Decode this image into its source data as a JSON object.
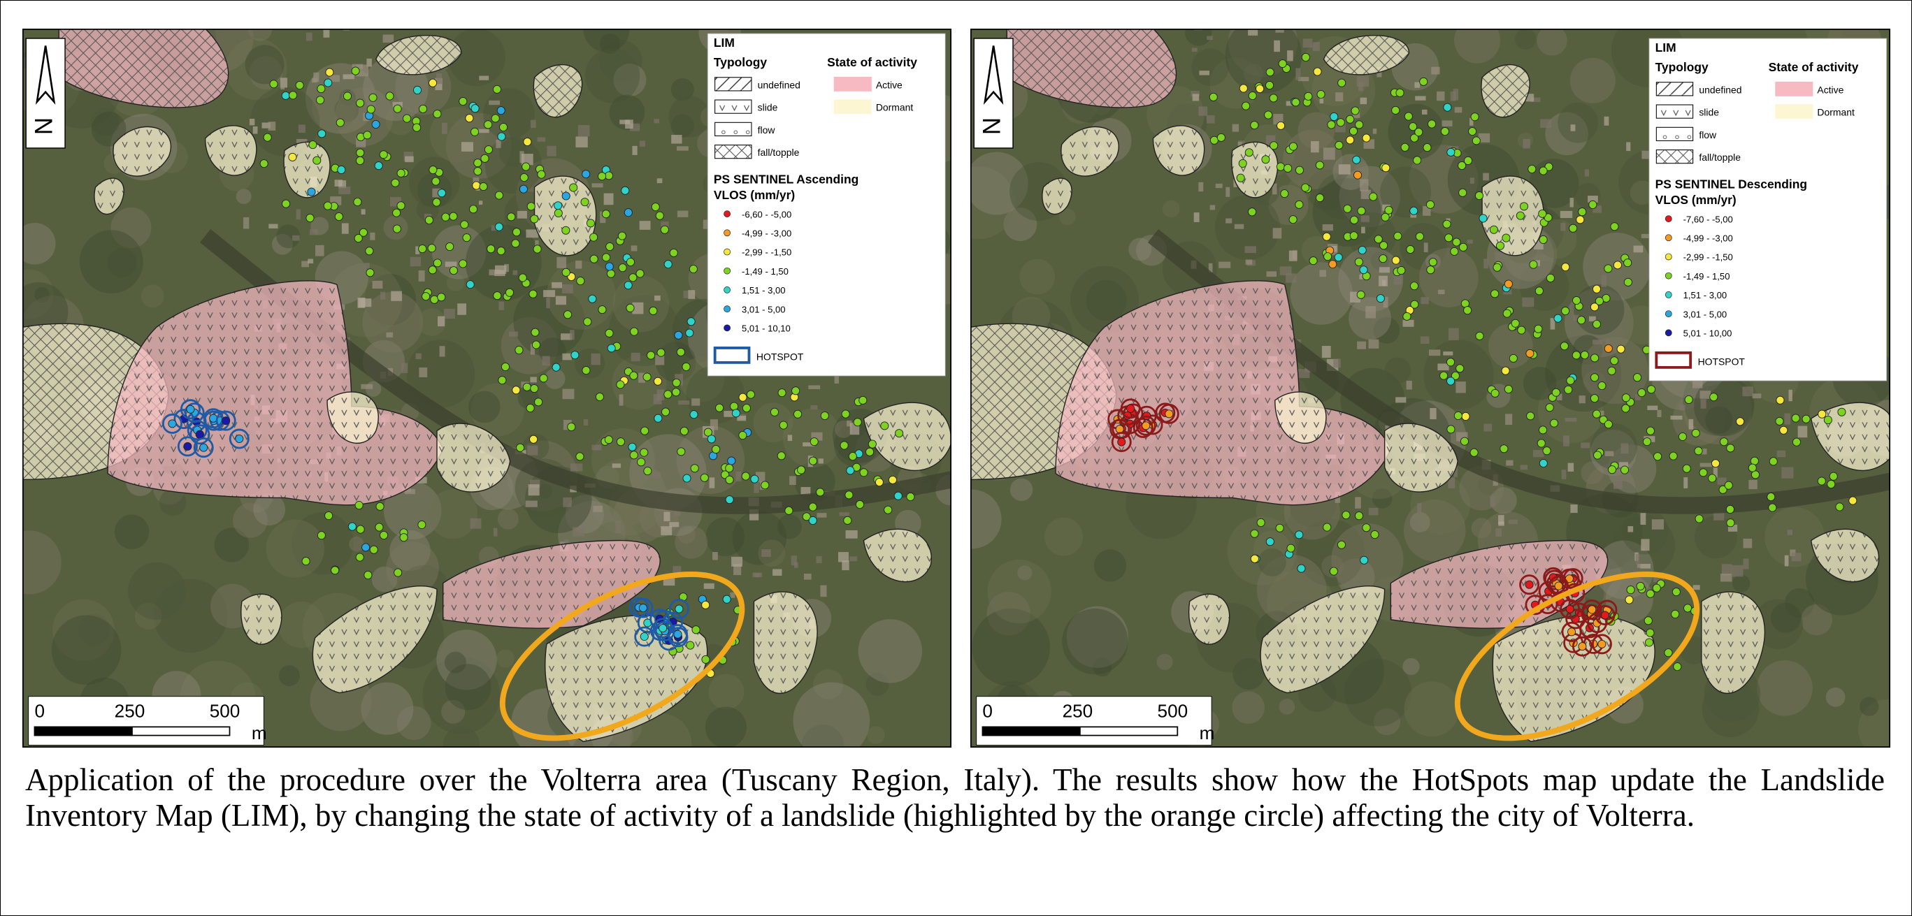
{
  "maps": [
    {
      "north": "N",
      "legend": {
        "title": "LIM",
        "typology_title": "Typology",
        "activity_title": "State of activity",
        "typology": [
          "undefined",
          "slide",
          "flow",
          "fall/topple"
        ],
        "activity": [
          {
            "label": "Active",
            "color": "#f7b9c2"
          },
          {
            "label": "Dormant",
            "color": "#fdf6d2"
          }
        ],
        "ps_title": "PS SENTINEL Ascending",
        "ps_unit": "VLOS (mm/yr)",
        "classes": [
          {
            "label": "-6,60 - -5,00",
            "color": "#e31a1c"
          },
          {
            "label": "-4,99 - -3,00",
            "color": "#f59b22"
          },
          {
            "label": "-2,99 - -1,50",
            "color": "#f5e73b"
          },
          {
            "label": "-1,49 - 1,50",
            "color": "#7ed321"
          },
          {
            "label": "1,51 - 3,00",
            "color": "#2fd3c8"
          },
          {
            "label": "3,01 - 5,00",
            "color": "#2aa7e0"
          },
          {
            "label": "5,01 - 10,10",
            "color": "#1a1aa8"
          }
        ],
        "hotspot": "HOTSPOT",
        "hotspot_color": "#1f5aa6"
      },
      "scale": {
        "ticks": [
          0,
          250,
          500
        ],
        "unit": "m"
      }
    },
    {
      "north": "N",
      "legend": {
        "title": "LIM",
        "typology_title": "Typology",
        "activity_title": "State of activity",
        "typology": [
          "undefined",
          "slide",
          "flow",
          "fall/topple"
        ],
        "activity": [
          {
            "label": "Active",
            "color": "#f7b9c2"
          },
          {
            "label": "Dormant",
            "color": "#fdf6d2"
          }
        ],
        "ps_title": "PS SENTINEL Descending",
        "ps_unit": "VLOS (mm/yr)",
        "classes": [
          {
            "label": "-7,60 - -5,00",
            "color": "#e31a1c"
          },
          {
            "label": "-4,99 - -3,00",
            "color": "#f59b22"
          },
          {
            "label": "-2,99 - -1,50",
            "color": "#f5e73b"
          },
          {
            "label": "-1,49 - 1,50",
            "color": "#7ed321"
          },
          {
            "label": "1,51 - 3,00",
            "color": "#2fd3c8"
          },
          {
            "label": "3,01 - 5,00",
            "color": "#2aa7e0"
          },
          {
            "label": "5,01 - 10,00",
            "color": "#1a1aa8"
          }
        ],
        "hotspot": "HOTSPOT",
        "hotspot_color": "#8b1a1a"
      },
      "scale": {
        "ticks": [
          0,
          250,
          500
        ],
        "unit": "m"
      }
    }
  ],
  "caption": "Application of the procedure over the Volterra area (Tuscany Region, Italy). The results show how the HotSpots map update the Landslide Inventory Map (LIM), by changing the state of activity of a landslide (highlighted by the orange circle) affecting the city of Volterra."
}
